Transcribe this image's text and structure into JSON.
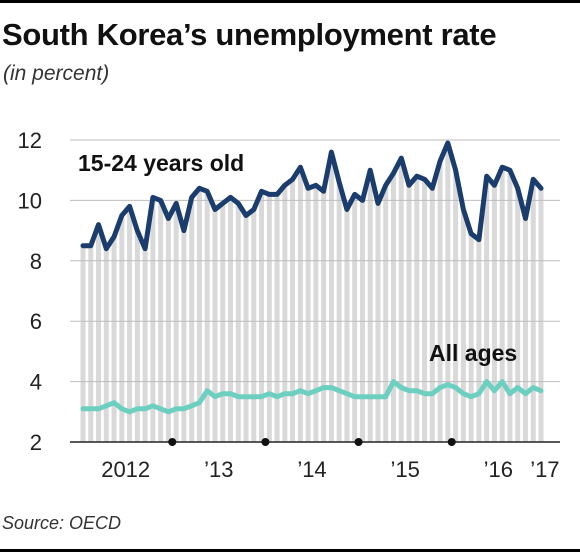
{
  "header": {
    "title": "South Korea’s unemployment rate",
    "subtitle": "(in percent)"
  },
  "footer": {
    "source": "Source: OECD"
  },
  "colors": {
    "youth": "#1b3d6e",
    "all_ages": "#6ccfc0",
    "bars": "#d9d9d9",
    "grid": "#bdbdbd",
    "axis": "#222222"
  },
  "chart_data": {
    "type": "line",
    "title": "South Korea’s unemployment rate",
    "subtitle": "(in percent)",
    "ylim": [
      2,
      12
    ],
    "y_ticks": [
      2,
      4,
      6,
      8,
      10,
      12
    ],
    "x_tick_labels": [
      "2012",
      "’13",
      "’14",
      "’15",
      "’16",
      "’17"
    ],
    "grid": true,
    "background_bars": true,
    "series": [
      {
        "name": "15-24 years old",
        "color": "#1b3d6e",
        "values": [
          8.5,
          8.5,
          9.2,
          8.4,
          8.8,
          9.5,
          9.8,
          9.0,
          8.4,
          10.1,
          10.0,
          9.4,
          9.9,
          9.0,
          10.1,
          10.4,
          10.3,
          9.7,
          9.9,
          10.1,
          9.9,
          9.5,
          9.7,
          10.3,
          10.2,
          10.2,
          10.5,
          10.7,
          11.1,
          10.4,
          10.5,
          10.3,
          11.6,
          10.6,
          9.7,
          10.2,
          10.0,
          11.0,
          9.9,
          10.5,
          10.9,
          11.4,
          10.5,
          10.8,
          10.7,
          10.4,
          11.3,
          11.9,
          11.0,
          9.7,
          8.9,
          8.7,
          10.8,
          10.5,
          11.1,
          11.0,
          10.4,
          9.4,
          10.7,
          10.4
        ]
      },
      {
        "name": "All ages",
        "color": "#6ccfc0",
        "values": [
          3.1,
          3.1,
          3.1,
          3.2,
          3.3,
          3.1,
          3.0,
          3.1,
          3.1,
          3.2,
          3.1,
          3.0,
          3.1,
          3.1,
          3.2,
          3.3,
          3.7,
          3.5,
          3.6,
          3.6,
          3.5,
          3.5,
          3.5,
          3.5,
          3.6,
          3.5,
          3.6,
          3.6,
          3.7,
          3.6,
          3.7,
          3.8,
          3.8,
          3.7,
          3.6,
          3.5,
          3.5,
          3.5,
          3.5,
          3.5,
          4.0,
          3.8,
          3.7,
          3.7,
          3.6,
          3.6,
          3.8,
          3.9,
          3.8,
          3.6,
          3.5,
          3.6,
          4.0,
          3.7,
          4.0,
          3.6,
          3.8,
          3.6,
          3.8,
          3.7
        ]
      }
    ]
  }
}
